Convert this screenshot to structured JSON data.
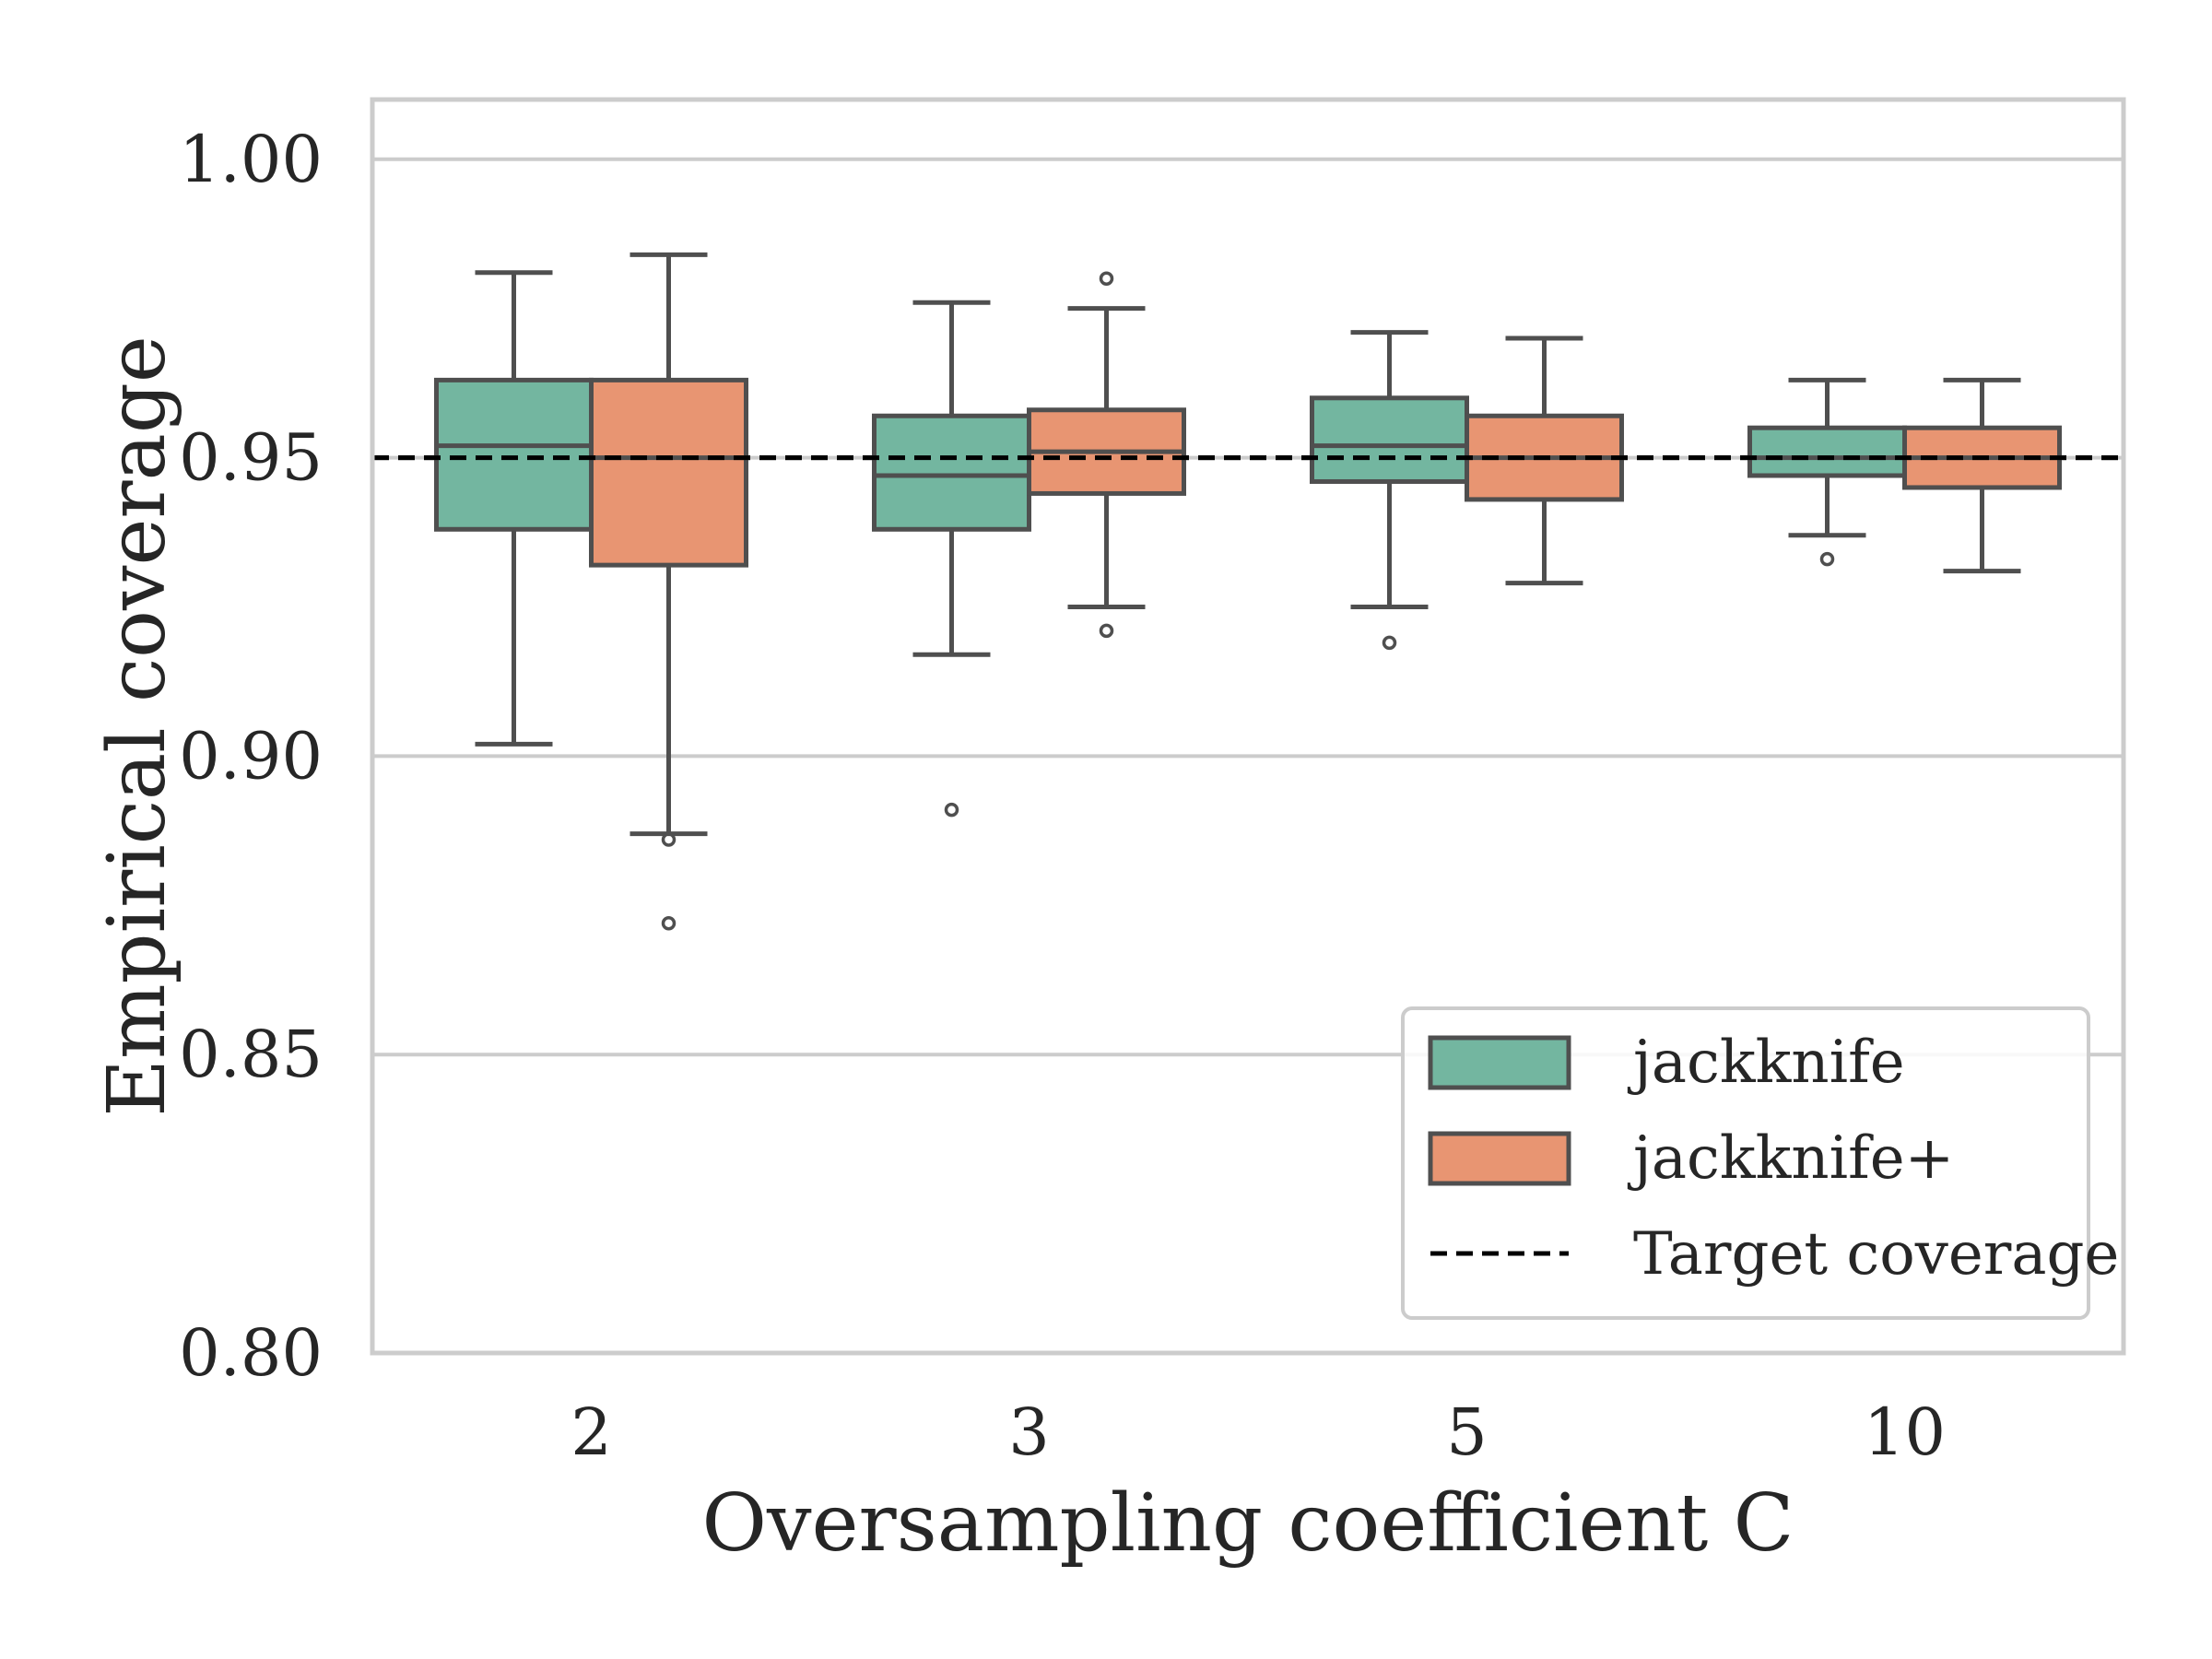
{
  "chart_data": {
    "type": "box",
    "xlabel": "Oversampling coefficient C",
    "ylabel": "Empirical coverage",
    "ylim": [
      0.8,
      1.01
    ],
    "yticks": [
      0.8,
      0.85,
      0.9,
      0.95,
      1.0
    ],
    "ytick_labels": [
      "0.80",
      "0.85",
      "0.90",
      "0.95",
      "1.00"
    ],
    "categories": [
      "2",
      "3",
      "5",
      "10"
    ],
    "grid": "horizontal",
    "legend_position": "bottom-right",
    "reference_line": {
      "name": "Target coverage",
      "y": 0.95,
      "style": "dashed",
      "color": "#000000"
    },
    "series": [
      {
        "name": "jackknife",
        "color": "#73b6a0",
        "boxes": [
          {
            "whisker_low": 0.902,
            "q1": 0.938,
            "median": 0.952,
            "q3": 0.963,
            "whisker_high": 0.981,
            "outliers": []
          },
          {
            "whisker_low": 0.917,
            "q1": 0.938,
            "median": 0.947,
            "q3": 0.957,
            "whisker_high": 0.976,
            "outliers": [
              0.891
            ]
          },
          {
            "whisker_low": 0.925,
            "q1": 0.946,
            "median": 0.952,
            "q3": 0.96,
            "whisker_high": 0.971,
            "outliers": [
              0.919
            ]
          },
          {
            "whisker_low": 0.937,
            "q1": 0.947,
            "median": 0.95,
            "q3": 0.955,
            "whisker_high": 0.963,
            "outliers": [
              0.933
            ]
          }
        ]
      },
      {
        "name": "jackknife+",
        "color": "#e89572",
        "boxes": [
          {
            "whisker_low": 0.887,
            "q1": 0.932,
            "median": 0.95,
            "q3": 0.963,
            "whisker_high": 0.984,
            "outliers": [
              0.886,
              0.872
            ]
          },
          {
            "whisker_low": 0.925,
            "q1": 0.944,
            "median": 0.951,
            "q3": 0.958,
            "whisker_high": 0.975,
            "outliers": [
              0.98,
              0.921
            ]
          },
          {
            "whisker_low": 0.929,
            "q1": 0.943,
            "median": 0.95,
            "q3": 0.957,
            "whisker_high": 0.97,
            "outliers": []
          },
          {
            "whisker_low": 0.931,
            "q1": 0.945,
            "median": 0.95,
            "q3": 0.955,
            "whisker_high": 0.963,
            "outliers": []
          }
        ]
      }
    ]
  },
  "legend": {
    "items": [
      {
        "label": "jackknife",
        "kind": "patch",
        "color": "#73b6a0"
      },
      {
        "label": "jackknife+",
        "kind": "patch",
        "color": "#e89572"
      },
      {
        "label": "Target coverage",
        "kind": "dashed-line",
        "color": "#000000"
      }
    ]
  }
}
